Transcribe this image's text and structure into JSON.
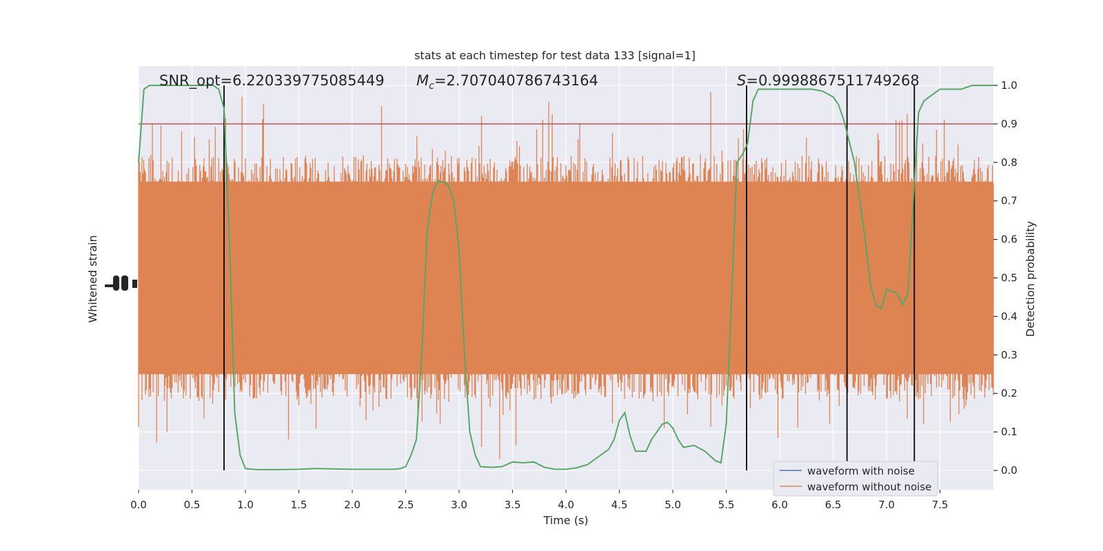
{
  "chart_data": {
    "type": "line",
    "title": "stats at each timestep for test data 133 [signal=1]",
    "xlabel": "Time (s)",
    "ylabel_left": "Whitened strain",
    "ylabel_right": "Detection probability",
    "xlim": [
      0.0,
      8.0
    ],
    "ylim_right": [
      -0.05,
      1.05
    ],
    "xticks": [
      0.0,
      0.5,
      1.0,
      1.5,
      2.0,
      2.5,
      3.0,
      3.5,
      4.0,
      4.5,
      5.0,
      5.5,
      6.0,
      6.5,
      7.0,
      7.5
    ],
    "xtick_labels": [
      "0.0",
      "0.5",
      "1.0",
      "1.5",
      "2.0",
      "2.5",
      "3.0",
      "3.5",
      "4.0",
      "4.5",
      "5.0",
      "5.5",
      "6.0",
      "6.5",
      "7.0",
      "7.5"
    ],
    "yticks_right": [
      0.0,
      0.1,
      0.2,
      0.3,
      0.4,
      0.5,
      0.6,
      0.7,
      0.8,
      0.9,
      1.0
    ],
    "ytick_labels_right": [
      "0.0",
      "0.1",
      "0.2",
      "0.3",
      "0.4",
      "0.5",
      "0.6",
      "0.7",
      "0.8",
      "0.9",
      "1.0"
    ],
    "annotations": {
      "snr": "SNR_opt=6.220339775085449",
      "mc_symbol": "M",
      "mc_sub": "c",
      "mc_value": "=2.707040786743164",
      "s_symbol": "S",
      "s_value": "=0.9998867511749268"
    },
    "threshold": {
      "y": 0.9,
      "color": "#c44e52"
    },
    "vertical_lines_x": [
      0.8,
      5.69,
      6.63,
      7.26
    ],
    "grid": true,
    "legend_placement": "lower-right",
    "series": [
      {
        "name": "waveform with noise",
        "color": "#4c72b0",
        "kind": "strain",
        "values": []
      },
      {
        "name": "waveform without noise",
        "color": "#dd8452",
        "kind": "strain_noise_band",
        "center": 0.5,
        "band_low": 0.25,
        "band_high": 0.75,
        "values": []
      },
      {
        "kind": "probability",
        "color": "#55a868",
        "points": [
          [
            0.0,
            0.8
          ],
          [
            0.05,
            0.99
          ],
          [
            0.1,
            1.0
          ],
          [
            0.2,
            1.0
          ],
          [
            0.3,
            1.0
          ],
          [
            0.4,
            1.0
          ],
          [
            0.5,
            1.0
          ],
          [
            0.6,
            1.0
          ],
          [
            0.7,
            1.0
          ],
          [
            0.75,
            0.99
          ],
          [
            0.8,
            0.94
          ],
          [
            0.85,
            0.6
          ],
          [
            0.9,
            0.15
          ],
          [
            0.95,
            0.04
          ],
          [
            1.0,
            0.005
          ],
          [
            1.1,
            0.002
          ],
          [
            1.3,
            0.002
          ],
          [
            1.5,
            0.003
          ],
          [
            1.65,
            0.005
          ],
          [
            1.8,
            0.004
          ],
          [
            2.0,
            0.003
          ],
          [
            2.2,
            0.003
          ],
          [
            2.4,
            0.003
          ],
          [
            2.45,
            0.005
          ],
          [
            2.5,
            0.01
          ],
          [
            2.55,
            0.04
          ],
          [
            2.6,
            0.08
          ],
          [
            2.65,
            0.3
          ],
          [
            2.7,
            0.62
          ],
          [
            2.75,
            0.72
          ],
          [
            2.8,
            0.75
          ],
          [
            2.85,
            0.75
          ],
          [
            2.9,
            0.74
          ],
          [
            2.95,
            0.7
          ],
          [
            3.0,
            0.57
          ],
          [
            3.05,
            0.3
          ],
          [
            3.1,
            0.1
          ],
          [
            3.15,
            0.04
          ],
          [
            3.2,
            0.01
          ],
          [
            3.3,
            0.008
          ],
          [
            3.4,
            0.01
          ],
          [
            3.5,
            0.022
          ],
          [
            3.6,
            0.02
          ],
          [
            3.7,
            0.022
          ],
          [
            3.8,
            0.008
          ],
          [
            3.9,
            0.003
          ],
          [
            4.0,
            0.003
          ],
          [
            4.1,
            0.007
          ],
          [
            4.2,
            0.015
          ],
          [
            4.3,
            0.035
          ],
          [
            4.4,
            0.055
          ],
          [
            4.45,
            0.08
          ],
          [
            4.5,
            0.13
          ],
          [
            4.55,
            0.15
          ],
          [
            4.6,
            0.09
          ],
          [
            4.65,
            0.05
          ],
          [
            4.75,
            0.05
          ],
          [
            4.8,
            0.08
          ],
          [
            4.9,
            0.12
          ],
          [
            4.95,
            0.125
          ],
          [
            5.0,
            0.11
          ],
          [
            5.05,
            0.08
          ],
          [
            5.1,
            0.06
          ],
          [
            5.2,
            0.065
          ],
          [
            5.3,
            0.05
          ],
          [
            5.4,
            0.025
          ],
          [
            5.45,
            0.02
          ],
          [
            5.5,
            0.12
          ],
          [
            5.55,
            0.45
          ],
          [
            5.6,
            0.8
          ],
          [
            5.65,
            0.82
          ],
          [
            5.7,
            0.85
          ],
          [
            5.75,
            0.96
          ],
          [
            5.8,
            0.99
          ],
          [
            5.9,
            0.99
          ],
          [
            6.0,
            0.99
          ],
          [
            6.1,
            0.99
          ],
          [
            6.2,
            0.99
          ],
          [
            6.3,
            0.99
          ],
          [
            6.4,
            0.985
          ],
          [
            6.5,
            0.97
          ],
          [
            6.55,
            0.95
          ],
          [
            6.6,
            0.91
          ],
          [
            6.7,
            0.8
          ],
          [
            6.8,
            0.6
          ],
          [
            6.85,
            0.48
          ],
          [
            6.9,
            0.43
          ],
          [
            6.95,
            0.42
          ],
          [
            7.0,
            0.47
          ],
          [
            7.1,
            0.46
          ],
          [
            7.15,
            0.43
          ],
          [
            7.2,
            0.46
          ],
          [
            7.25,
            0.7
          ],
          [
            7.3,
            0.93
          ],
          [
            7.35,
            0.96
          ],
          [
            7.45,
            0.98
          ],
          [
            7.5,
            0.99
          ],
          [
            7.6,
            0.99
          ],
          [
            7.7,
            0.99
          ],
          [
            7.8,
            1.0
          ],
          [
            7.9,
            1.0
          ],
          [
            8.0,
            1.0
          ]
        ]
      }
    ]
  }
}
